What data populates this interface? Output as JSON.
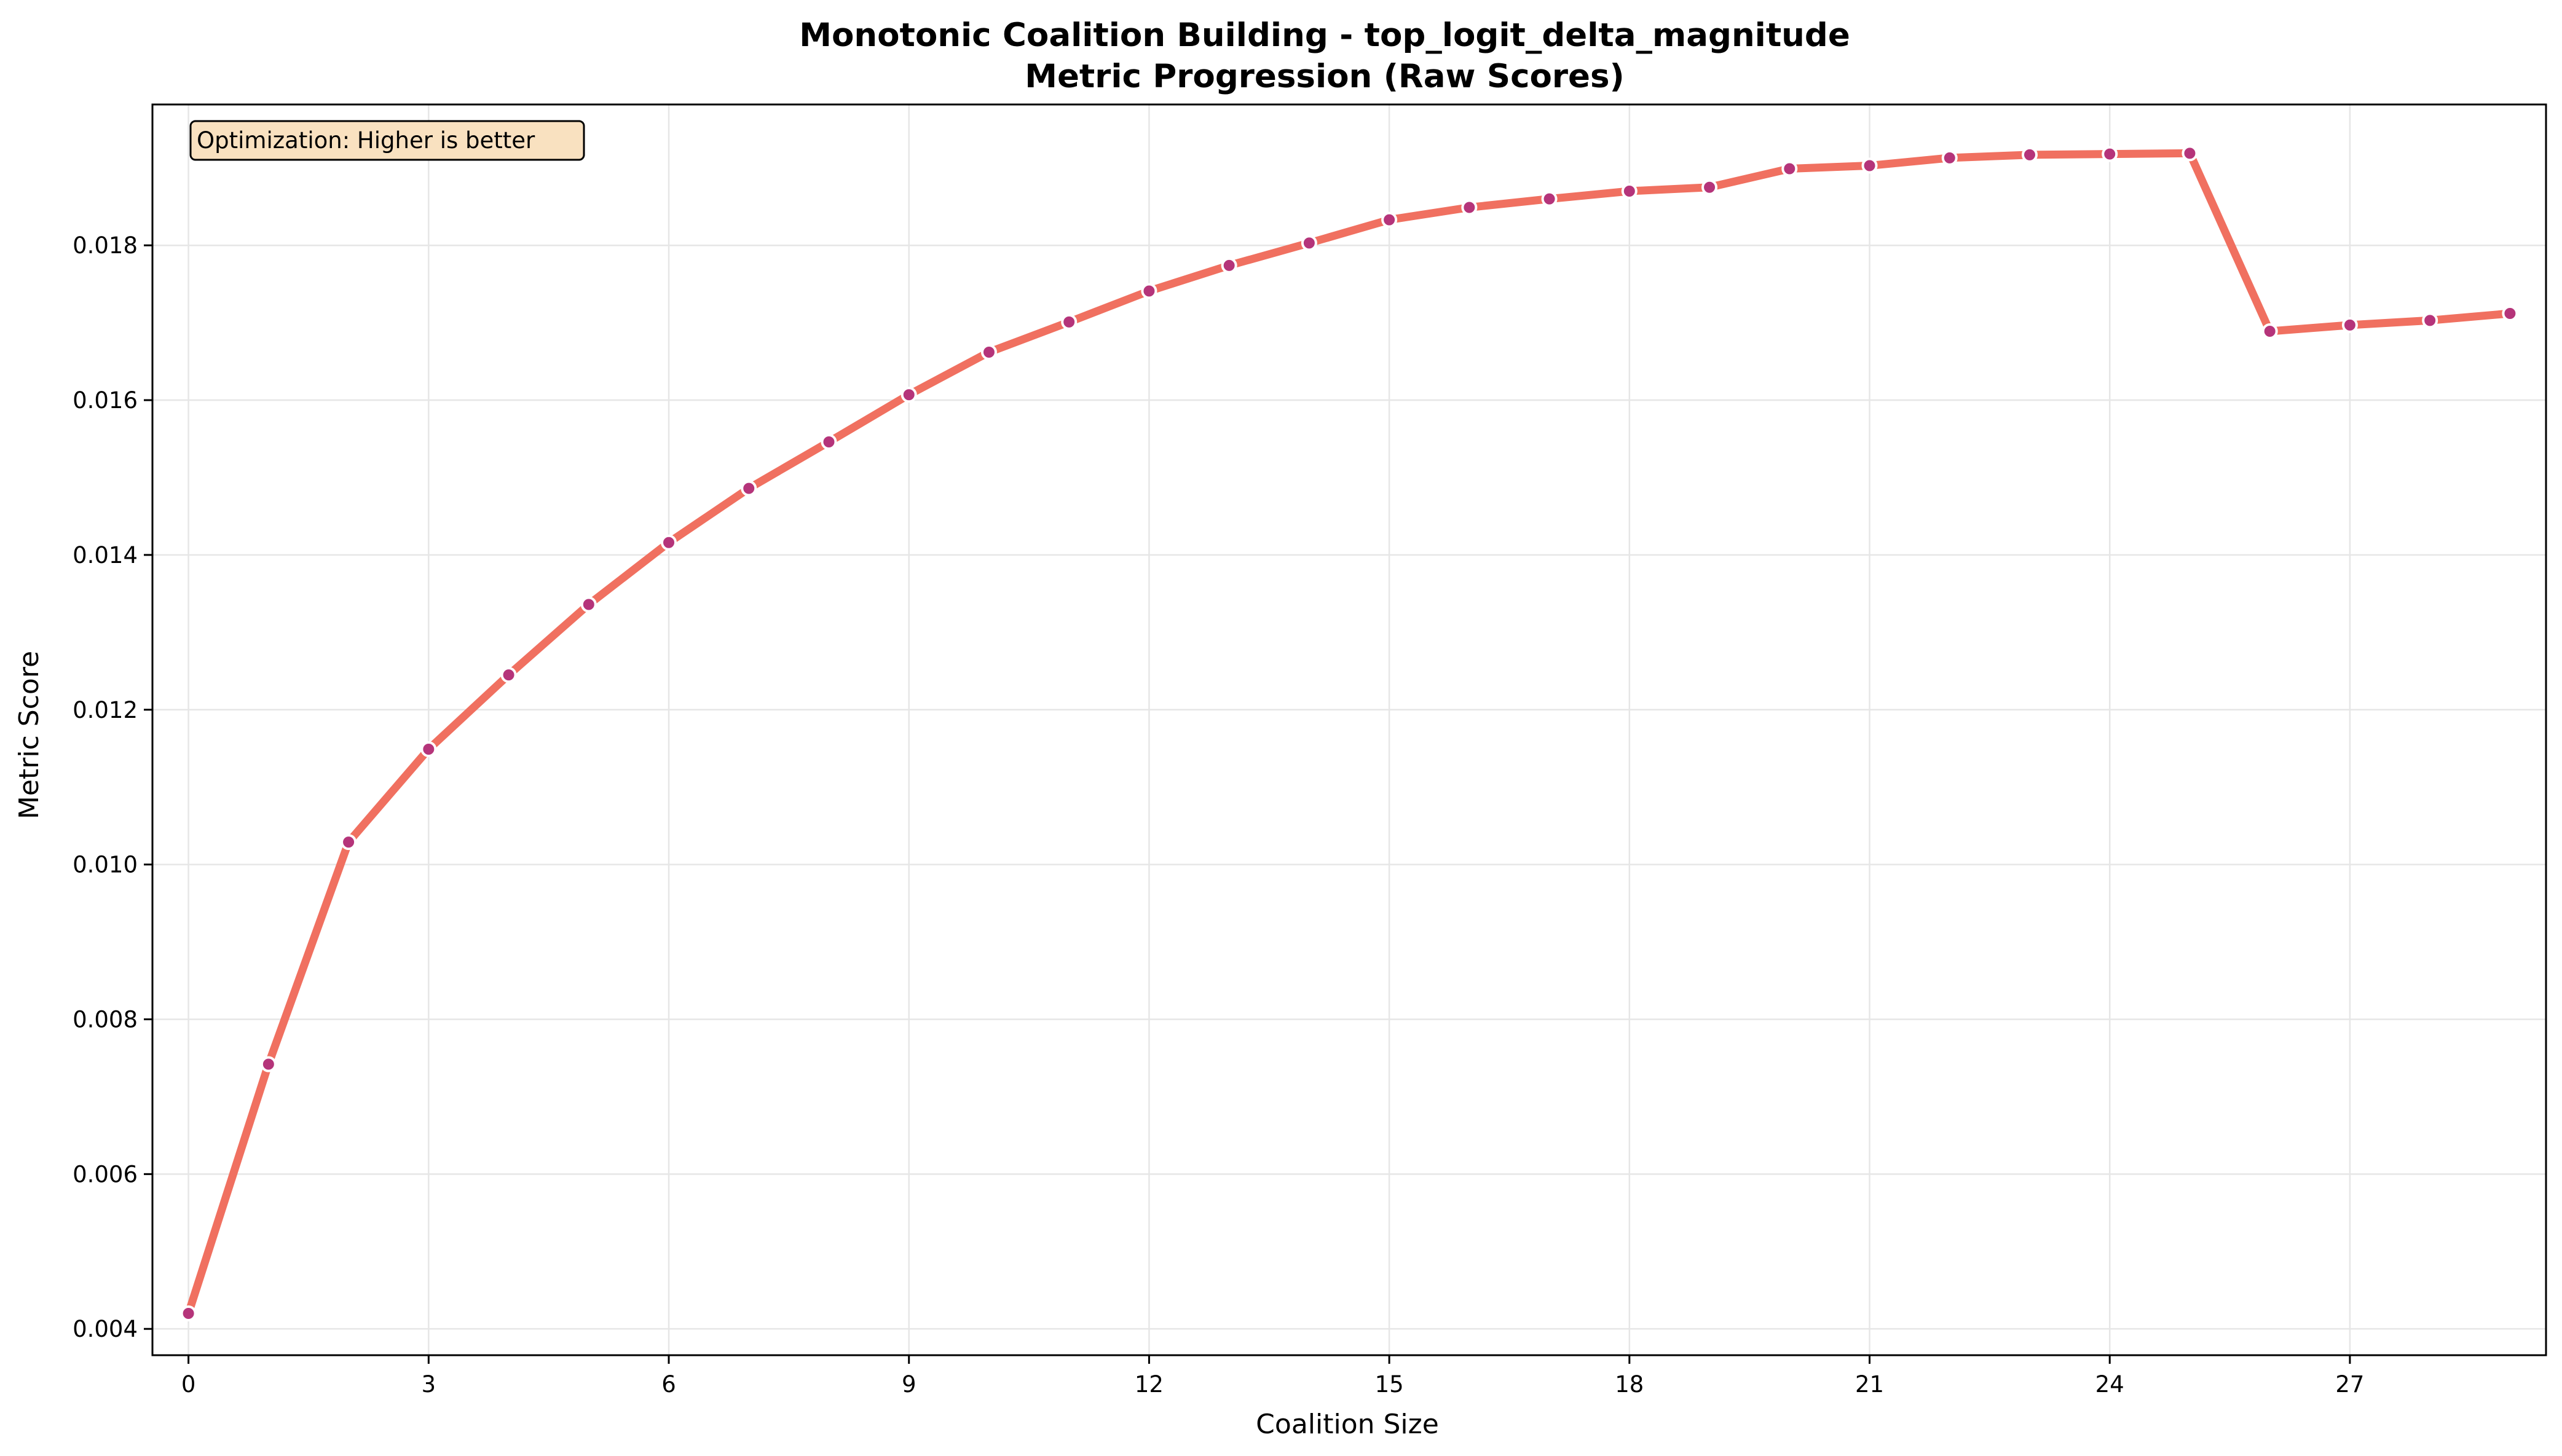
{
  "chart_data": {
    "type": "line",
    "title": "Monotonic Coalition Building - top_logit_delta_magnitude",
    "subtitle": "Metric Progression (Raw Scores)",
    "xlabel": "Coalition Size",
    "ylabel": "Metric Score",
    "xlim": [
      -0.45,
      29.45
    ],
    "ylim": [
      0.00366,
      0.01982
    ],
    "xticks": [
      0,
      3,
      6,
      9,
      12,
      15,
      18,
      21,
      24,
      27
    ],
    "yticks": [
      0.004,
      0.006,
      0.008,
      0.01,
      0.012,
      0.014,
      0.016,
      0.018
    ],
    "ytick_labels": [
      "0.004",
      "0.006",
      "0.008",
      "0.010",
      "0.012",
      "0.014",
      "0.016",
      "0.018"
    ],
    "grid": true,
    "annotation": "Optimization: Higher is better",
    "colors": {
      "line": "#f07060",
      "marker_fill": "#b5347a",
      "marker_edge": "#ffffff",
      "annotation_bg": "#f9e1c0",
      "grid": "#e6e6e6"
    },
    "x": [
      0,
      1,
      2,
      3,
      4,
      5,
      6,
      7,
      8,
      9,
      10,
      11,
      12,
      13,
      14,
      15,
      16,
      17,
      18,
      19,
      20,
      21,
      22,
      23,
      24,
      25,
      26,
      27,
      28,
      29
    ],
    "series": [
      {
        "values": [
          0.0042,
          0.00742,
          0.01029,
          0.01149,
          0.01245,
          0.01336,
          0.01416,
          0.01486,
          0.01546,
          0.01607,
          0.01662,
          0.01701,
          0.01741,
          0.01774,
          0.01803,
          0.01833,
          0.01849,
          0.0186,
          0.0187,
          0.01875,
          0.01899,
          0.01903,
          0.01913,
          0.01917,
          0.01918,
          0.01919,
          0.01689,
          0.01697,
          0.01703,
          0.01712
        ]
      }
    ]
  }
}
